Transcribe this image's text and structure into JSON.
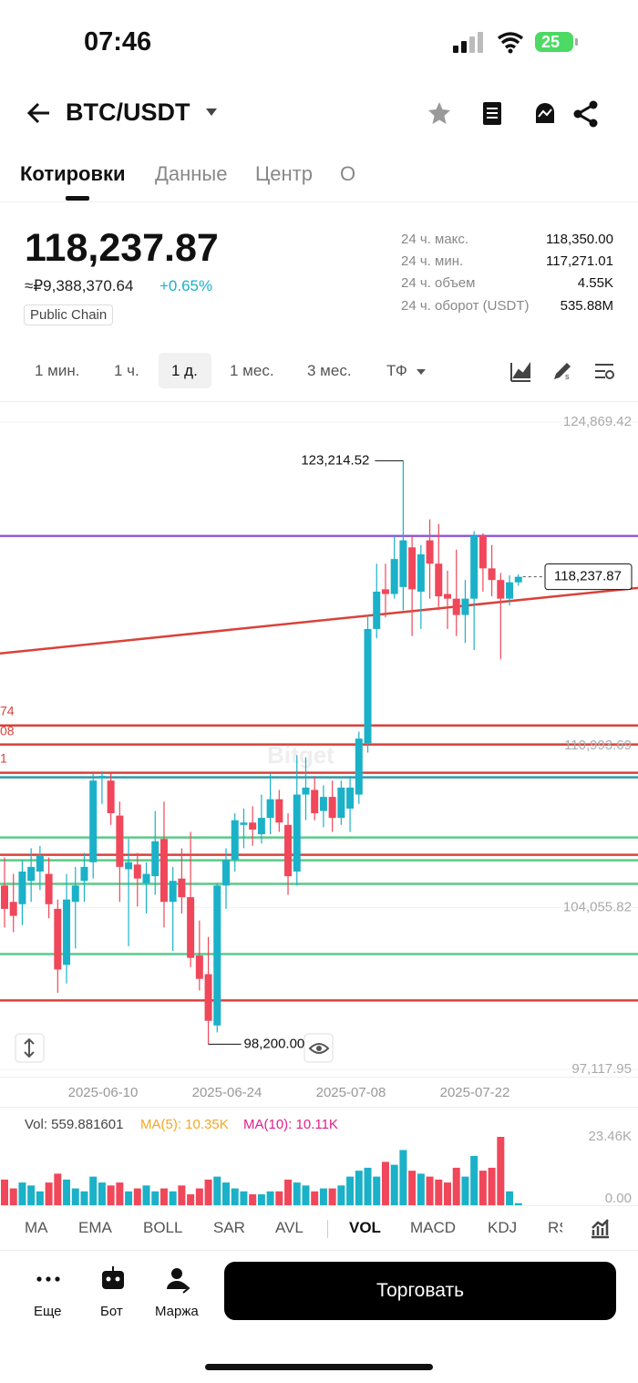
{
  "status": {
    "time": "07:46",
    "battery": "25"
  },
  "header": {
    "pair": "BTC/USDT"
  },
  "tabs": [
    "Котировки",
    "Данные",
    "Центр",
    "О"
  ],
  "ticker": {
    "last": "118,237.87",
    "fiat": "≈₽9,388,370.64",
    "change": "+0.65%",
    "tag": "Public Chain"
  },
  "stats": [
    [
      "24 ч. макс.",
      "118,350.00"
    ],
    [
      "24 ч. мин.",
      "117,271.01"
    ],
    [
      "24 ч. объем",
      "4.55K"
    ],
    [
      "24 ч. оборот (USDT)",
      "535.88M"
    ]
  ],
  "timeframes": [
    "1 мин.",
    "1 ч.",
    "1 д.",
    "1 мес.",
    "3 мес.",
    "ТФ"
  ],
  "chart": {
    "type": "candlestick",
    "ylim": [
      97117.95,
      124869.42
    ],
    "yticks": [
      {
        "value": 124869.42,
        "label": "124,869.42"
      },
      {
        "value": 110993.69,
        "label": "110,993.69"
      },
      {
        "value": 104055.82,
        "label": "104,055.82"
      },
      {
        "value": 97117.95,
        "label": "97,117.95"
      }
    ],
    "xticks": [
      "2025-06-10",
      "2025-06-24",
      "2025-07-08",
      "2025-07-22"
    ],
    "high_label": "123,214.52",
    "low_label": "98,200.00",
    "price_tag": "118,237.87",
    "left_labels": [
      "74",
      "08",
      "1"
    ],
    "watermark": "Bitget",
    "up_color": "#1bb1c8",
    "down_color": "#f0475a",
    "candles": [
      {
        "o": 105000,
        "h": 106200,
        "l": 103200,
        "c": 104000
      },
      {
        "o": 104300,
        "h": 105500,
        "l": 103000,
        "c": 103700
      },
      {
        "o": 104200,
        "h": 106100,
        "l": 103300,
        "c": 105600
      },
      {
        "o": 105200,
        "h": 106600,
        "l": 104300,
        "c": 105800
      },
      {
        "o": 105600,
        "h": 106700,
        "l": 104800,
        "c": 106300
      },
      {
        "o": 105500,
        "h": 106200,
        "l": 103600,
        "c": 104200
      },
      {
        "o": 104000,
        "h": 104400,
        "l": 100400,
        "c": 101400
      },
      {
        "o": 101600,
        "h": 105500,
        "l": 100800,
        "c": 104400
      },
      {
        "o": 104300,
        "h": 105800,
        "l": 102300,
        "c": 105000
      },
      {
        "o": 105200,
        "h": 106400,
        "l": 104300,
        "c": 105800
      },
      {
        "o": 106000,
        "h": 109800,
        "l": 105300,
        "c": 109500
      },
      {
        "o": 109600,
        "h": 109900,
        "l": 108500,
        "c": 109700
      },
      {
        "o": 109500,
        "h": 109800,
        "l": 107600,
        "c": 108100
      },
      {
        "o": 108000,
        "h": 108600,
        "l": 104300,
        "c": 105800
      },
      {
        "o": 105700,
        "h": 107000,
        "l": 102400,
        "c": 106000
      },
      {
        "o": 105900,
        "h": 106400,
        "l": 104100,
        "c": 105300
      },
      {
        "o": 105100,
        "h": 106000,
        "l": 103800,
        "c": 105500
      },
      {
        "o": 105400,
        "h": 108200,
        "l": 104600,
        "c": 106900
      },
      {
        "o": 107000,
        "h": 108600,
        "l": 103200,
        "c": 104300
      },
      {
        "o": 104300,
        "h": 105800,
        "l": 102200,
        "c": 105200
      },
      {
        "o": 105300,
        "h": 106600,
        "l": 103800,
        "c": 104500
      },
      {
        "o": 104500,
        "h": 107300,
        "l": 101500,
        "c": 101900
      },
      {
        "o": 102000,
        "h": 103500,
        "l": 100500,
        "c": 101000
      },
      {
        "o": 101200,
        "h": 102800,
        "l": 98200,
        "c": 99200
      },
      {
        "o": 99000,
        "h": 105100,
        "l": 98700,
        "c": 105000
      },
      {
        "o": 105000,
        "h": 106600,
        "l": 104000,
        "c": 106100
      },
      {
        "o": 106100,
        "h": 108100,
        "l": 105600,
        "c": 107800
      },
      {
        "o": 107600,
        "h": 108300,
        "l": 106600,
        "c": 107700
      },
      {
        "o": 107700,
        "h": 108400,
        "l": 106700,
        "c": 107400
      },
      {
        "o": 107200,
        "h": 108900,
        "l": 106800,
        "c": 107900
      },
      {
        "o": 107900,
        "h": 109800,
        "l": 107200,
        "c": 108700
      },
      {
        "o": 108700,
        "h": 109100,
        "l": 107300,
        "c": 107700
      },
      {
        "o": 107600,
        "h": 108100,
        "l": 104600,
        "c": 105400
      },
      {
        "o": 105600,
        "h": 110600,
        "l": 105000,
        "c": 108900
      },
      {
        "o": 108900,
        "h": 110500,
        "l": 107800,
        "c": 109200
      },
      {
        "o": 109100,
        "h": 109700,
        "l": 107800,
        "c": 108100
      },
      {
        "o": 108200,
        "h": 109300,
        "l": 107500,
        "c": 108800
      },
      {
        "o": 108800,
        "h": 109500,
        "l": 107300,
        "c": 107900
      },
      {
        "o": 107900,
        "h": 109500,
        "l": 107600,
        "c": 109200
      },
      {
        "o": 108300,
        "h": 109700,
        "l": 107300,
        "c": 109200
      },
      {
        "o": 108900,
        "h": 111600,
        "l": 108500,
        "c": 111300
      },
      {
        "o": 111100,
        "h": 116600,
        "l": 110700,
        "c": 116000
      },
      {
        "o": 116000,
        "h": 118800,
        "l": 115600,
        "c": 117600
      },
      {
        "o": 117700,
        "h": 118800,
        "l": 116500,
        "c": 117500
      },
      {
        "o": 117500,
        "h": 120000,
        "l": 117300,
        "c": 119000
      },
      {
        "o": 117800,
        "h": 123214.52,
        "l": 116800,
        "c": 119800
      },
      {
        "o": 119500,
        "h": 120000,
        "l": 115700,
        "c": 117700
      },
      {
        "o": 117600,
        "h": 119600,
        "l": 116000,
        "c": 119200
      },
      {
        "o": 119800,
        "h": 120700,
        "l": 117300,
        "c": 118800
      },
      {
        "o": 118800,
        "h": 120500,
        "l": 116800,
        "c": 117400
      },
      {
        "o": 117500,
        "h": 118500,
        "l": 116000,
        "c": 117300
      },
      {
        "o": 117300,
        "h": 119400,
        "l": 115700,
        "c": 116600
      },
      {
        "o": 116600,
        "h": 118100,
        "l": 115400,
        "c": 117300
      },
      {
        "o": 117300,
        "h": 120200,
        "l": 115100,
        "c": 120000
      },
      {
        "o": 120000,
        "h": 120100,
        "l": 117600,
        "c": 118600
      },
      {
        "o": 118600,
        "h": 119600,
        "l": 117400,
        "c": 118100
      },
      {
        "o": 118100,
        "h": 118400,
        "l": 114700,
        "c": 117300
      },
      {
        "o": 117300,
        "h": 118300,
        "l": 117000,
        "c": 118000
      },
      {
        "o": 118000,
        "h": 118350,
        "l": 117850,
        "c": 118237.87
      }
    ],
    "levels": [
      {
        "price": 119988,
        "color": "#8e5bdc"
      },
      {
        "price": 111865,
        "color": "#d9423a"
      },
      {
        "price": 111046,
        "color": "#d9423a"
      },
      {
        "price": 109835,
        "color": "#d9423a"
      },
      {
        "price": 109640,
        "color": "#2c9aa8"
      },
      {
        "price": 107062,
        "color": "#5cc98a"
      },
      {
        "price": 106320,
        "color": "#d9423a"
      },
      {
        "price": 106085,
        "color": "#5cc98a"
      },
      {
        "price": 105070,
        "color": "#5cc98a"
      },
      {
        "price": 102063,
        "color": "#5cc98a"
      },
      {
        "price": 100072,
        "color": "#d9423a"
      }
    ],
    "trend": {
      "from": 114951,
      "to": 117762,
      "color": "#d9423a"
    }
  },
  "volume": {
    "type": "bar",
    "label": "Vol: 559.881601",
    "ma5": "MA(5): 10.35K",
    "ma10": "MA(10): 10.11K",
    "ylim": [
      0,
      23460
    ],
    "yticks": [
      {
        "value": 23460,
        "label": "23.46K"
      },
      {
        "value": 0,
        "label": "0.00"
      }
    ],
    "values": [
      9000,
      6000,
      8000,
      7000,
      5000,
      8000,
      11000,
      9000,
      6000,
      5000,
      10000,
      8000,
      7000,
      8000,
      5000,
      6000,
      7000,
      5000,
      6000,
      5000,
      7000,
      4000,
      6000,
      9000,
      10000,
      8000,
      6000,
      5000,
      4000,
      4000,
      5000,
      5000,
      9000,
      8000,
      7000,
      5000,
      6000,
      6000,
      7000,
      10000,
      12000,
      13000,
      10000,
      15000,
      14000,
      19000,
      12000,
      11000,
      10000,
      9000,
      8000,
      13000,
      10000,
      17000,
      12000,
      13000,
      23460,
      5000,
      1000
    ]
  },
  "indicators": [
    "MA",
    "EMA",
    "BOLL",
    "SAR",
    "AVL",
    "VOL",
    "MACD",
    "KDJ",
    "RSI"
  ],
  "bottom": {
    "items": [
      "Еще",
      "Бот",
      "Маржа"
    ],
    "trade": "Торговать"
  }
}
